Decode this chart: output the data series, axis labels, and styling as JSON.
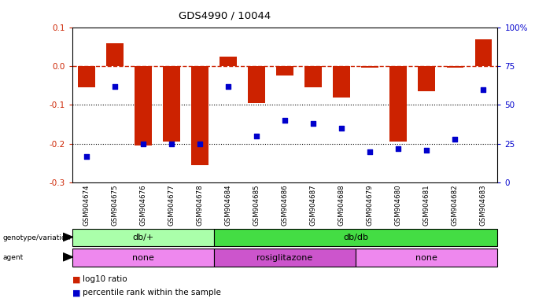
{
  "title": "GDS4990 / 10044",
  "samples": [
    "GSM904674",
    "GSM904675",
    "GSM904676",
    "GSM904677",
    "GSM904678",
    "GSM904684",
    "GSM904685",
    "GSM904686",
    "GSM904687",
    "GSM904688",
    "GSM904679",
    "GSM904680",
    "GSM904681",
    "GSM904682",
    "GSM904683"
  ],
  "log10_ratio": [
    -0.055,
    0.058,
    -0.205,
    -0.195,
    -0.255,
    0.025,
    -0.095,
    -0.025,
    -0.055,
    -0.08,
    -0.005,
    -0.195,
    -0.065,
    -0.005,
    0.068
  ],
  "percentile": [
    17,
    62,
    25,
    25,
    25,
    62,
    30,
    40,
    38,
    35,
    20,
    22,
    21,
    28,
    60
  ],
  "bar_color": "#cc2200",
  "dot_color": "#0000cc",
  "ylim_left": [
    -0.3,
    0.1
  ],
  "ylim_right": [
    0,
    100
  ],
  "yticks_left": [
    -0.3,
    -0.2,
    -0.1,
    0.0,
    0.1
  ],
  "yticks_right": [
    0,
    25,
    50,
    75,
    100
  ],
  "ytick_labels_right": [
    "0",
    "25",
    "50",
    "75",
    "100%"
  ],
  "hline_zero_color": "#cc2200",
  "hline_dotted": [
    -0.1,
    -0.2
  ],
  "plot_bg": "#ffffff",
  "genotype_groups": [
    {
      "label": "db/+",
      "start": 0,
      "end": 5,
      "color": "#aaffaa"
    },
    {
      "label": "db/db",
      "start": 5,
      "end": 15,
      "color": "#44dd44"
    }
  ],
  "agent_groups": [
    {
      "label": "none",
      "start": 0,
      "end": 5,
      "color": "#ee88ee"
    },
    {
      "label": "rosiglitazone",
      "start": 5,
      "end": 10,
      "color": "#cc55cc"
    },
    {
      "label": "none",
      "start": 10,
      "end": 15,
      "color": "#ee88ee"
    }
  ],
  "legend_items": [
    {
      "label": "log10 ratio",
      "color": "#cc2200"
    },
    {
      "label": "percentile rank within the sample",
      "color": "#0000cc"
    }
  ],
  "bar_width": 0.6
}
